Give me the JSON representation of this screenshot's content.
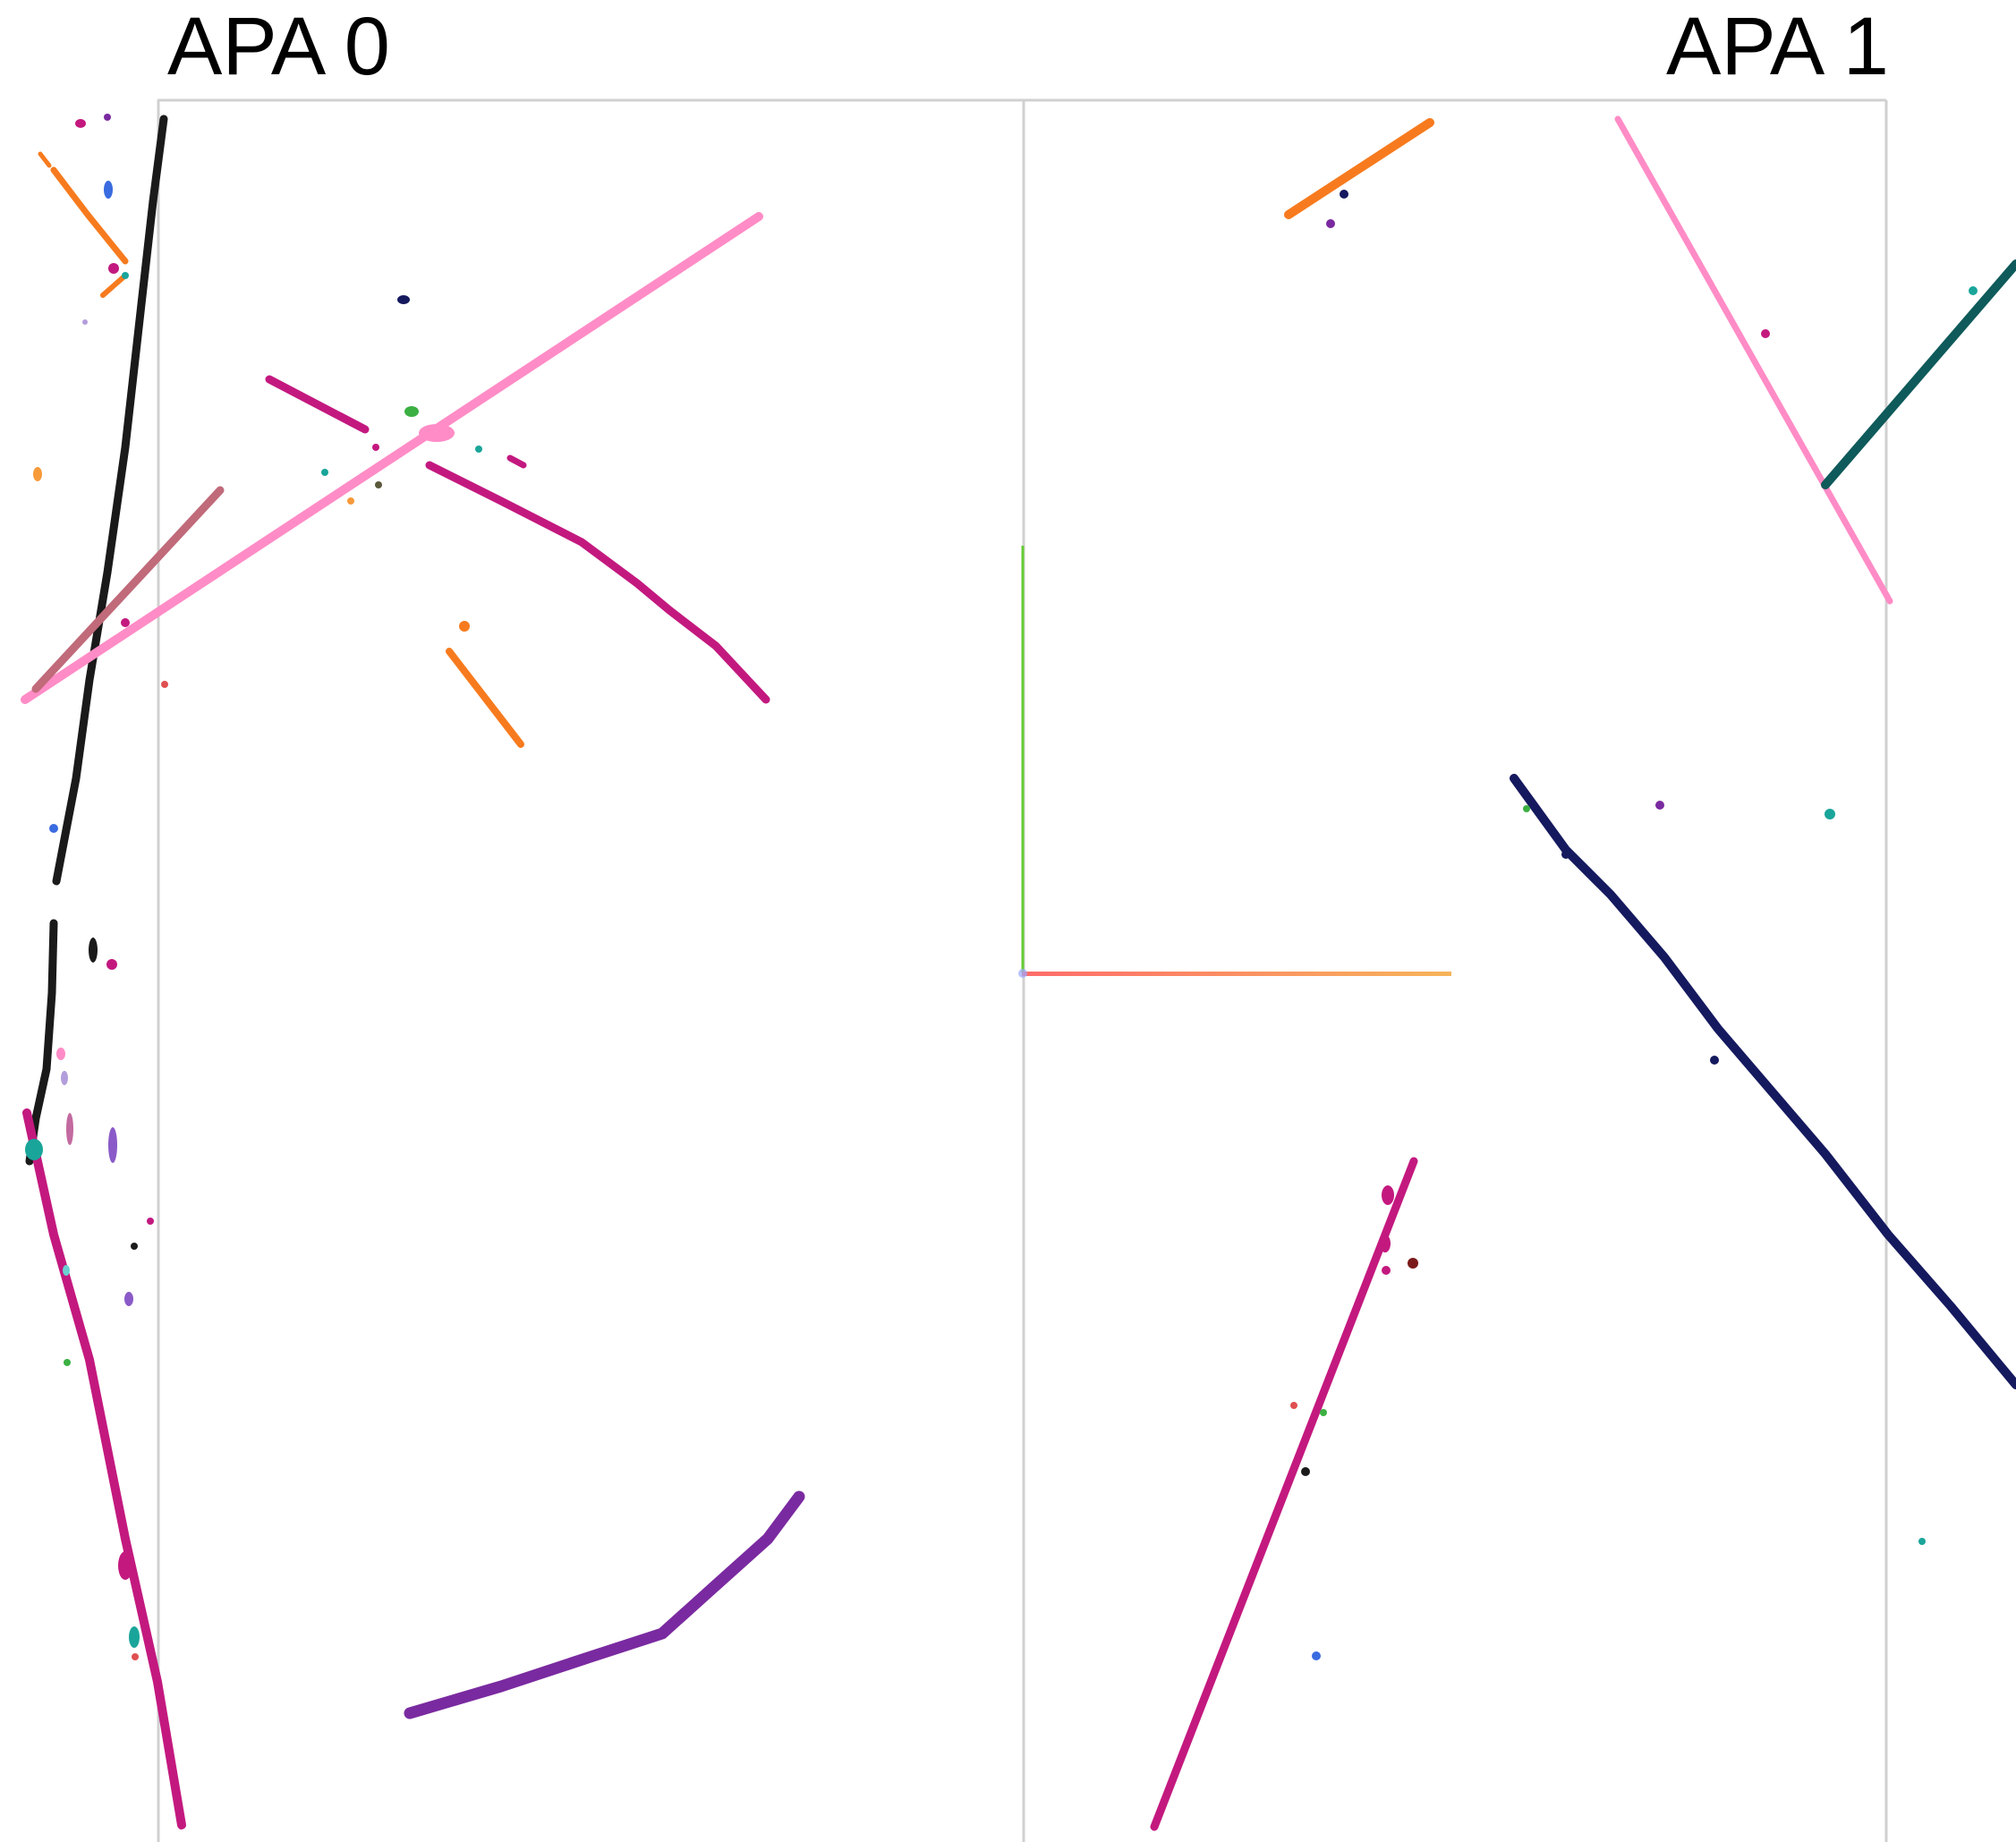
{
  "labels": {
    "apa0": "APA 0",
    "apa1": "APA 1"
  },
  "palette": {
    "black": "#1a1a1a",
    "pink": "#ff8cc6",
    "magenta": "#c3197f",
    "purple": "#7a2aa0",
    "orange": "#f77b1e",
    "rose": "#c06a7a",
    "navy": "#15195e",
    "teal": "#0f5a5a",
    "axis_x_start": "#ff6b6b",
    "axis_x_end": "#f7b45a",
    "axis_y": "#66cc33",
    "frame": "#d0d0d0"
  },
  "tracks": [
    {
      "name": "black-track-upper",
      "color": "#1a1a1a"
    },
    {
      "name": "black-track-lower",
      "color": "#1a1a1a"
    },
    {
      "name": "pink-track-long",
      "color": "#ff8cc6"
    },
    {
      "name": "magenta-track-upper",
      "color": "#c3197f"
    },
    {
      "name": "rose-track",
      "color": "#c06a7a"
    },
    {
      "name": "orange-track-small",
      "color": "#f77b1e"
    },
    {
      "name": "orange-track-top-left",
      "color": "#f77b1e"
    },
    {
      "name": "magenta-track-long-left",
      "color": "#c3197f"
    },
    {
      "name": "purple-track-curved",
      "color": "#7a2aa0"
    },
    {
      "name": "orange-track-top-right",
      "color": "#f77b1e"
    },
    {
      "name": "pink-track-right",
      "color": "#ff8cc6"
    },
    {
      "name": "teal-track",
      "color": "#0f5a5a"
    },
    {
      "name": "navy-track",
      "color": "#15195e"
    },
    {
      "name": "magenta-track-right",
      "color": "#c3197f"
    }
  ]
}
